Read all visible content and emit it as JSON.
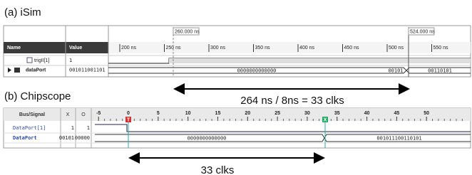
{
  "isim": {
    "title": "(a) iSim",
    "markers": [
      {
        "value": 260,
        "label": "260.000 ns"
      },
      {
        "value": 524,
        "label": "524.000 ns"
      }
    ],
    "time_ticks": [
      {
        "value": 200,
        "label": "200 ns"
      },
      {
        "value": 250,
        "label": "250 ns"
      },
      {
        "value": 300,
        "label": "300 ns"
      },
      {
        "value": 350,
        "label": "350 ns"
      },
      {
        "value": 400,
        "label": "400 ns"
      },
      {
        "value": 450,
        "label": "450 ns"
      },
      {
        "value": 500,
        "label": "500 ns"
      },
      {
        "value": 550,
        "label": "550 ns"
      }
    ],
    "headers": [
      "Name",
      "Value"
    ],
    "signals": [
      {
        "name": "trigII[1]",
        "value": "1"
      },
      {
        "name": "dataPort",
        "value": "001011001101",
        "wave": [
          "0000000000000",
          "00101",
          "00110101"
        ]
      }
    ]
  },
  "isim_annotation": "264 ns / 8ns = 33 clks",
  "chipscope": {
    "title": "(b) Chipscope",
    "headers": [
      "Bus/Signal",
      "X",
      "O"
    ],
    "ticks": [
      -5,
      0,
      5,
      10,
      15,
      20,
      25,
      30,
      35,
      40,
      45,
      50
    ],
    "markers": [
      {
        "value": 0,
        "label": "T"
      },
      {
        "value": 33,
        "label": "X"
      }
    ],
    "signals": [
      {
        "name": "DataPort[1]",
        "x": "1",
        "o": "1"
      },
      {
        "name": "DataPort",
        "x": "00101",
        "o": "00000",
        "wave": [
          "0000000000000",
          "001011100110101"
        ]
      }
    ]
  },
  "chipscope_annotation": "33 clks"
}
